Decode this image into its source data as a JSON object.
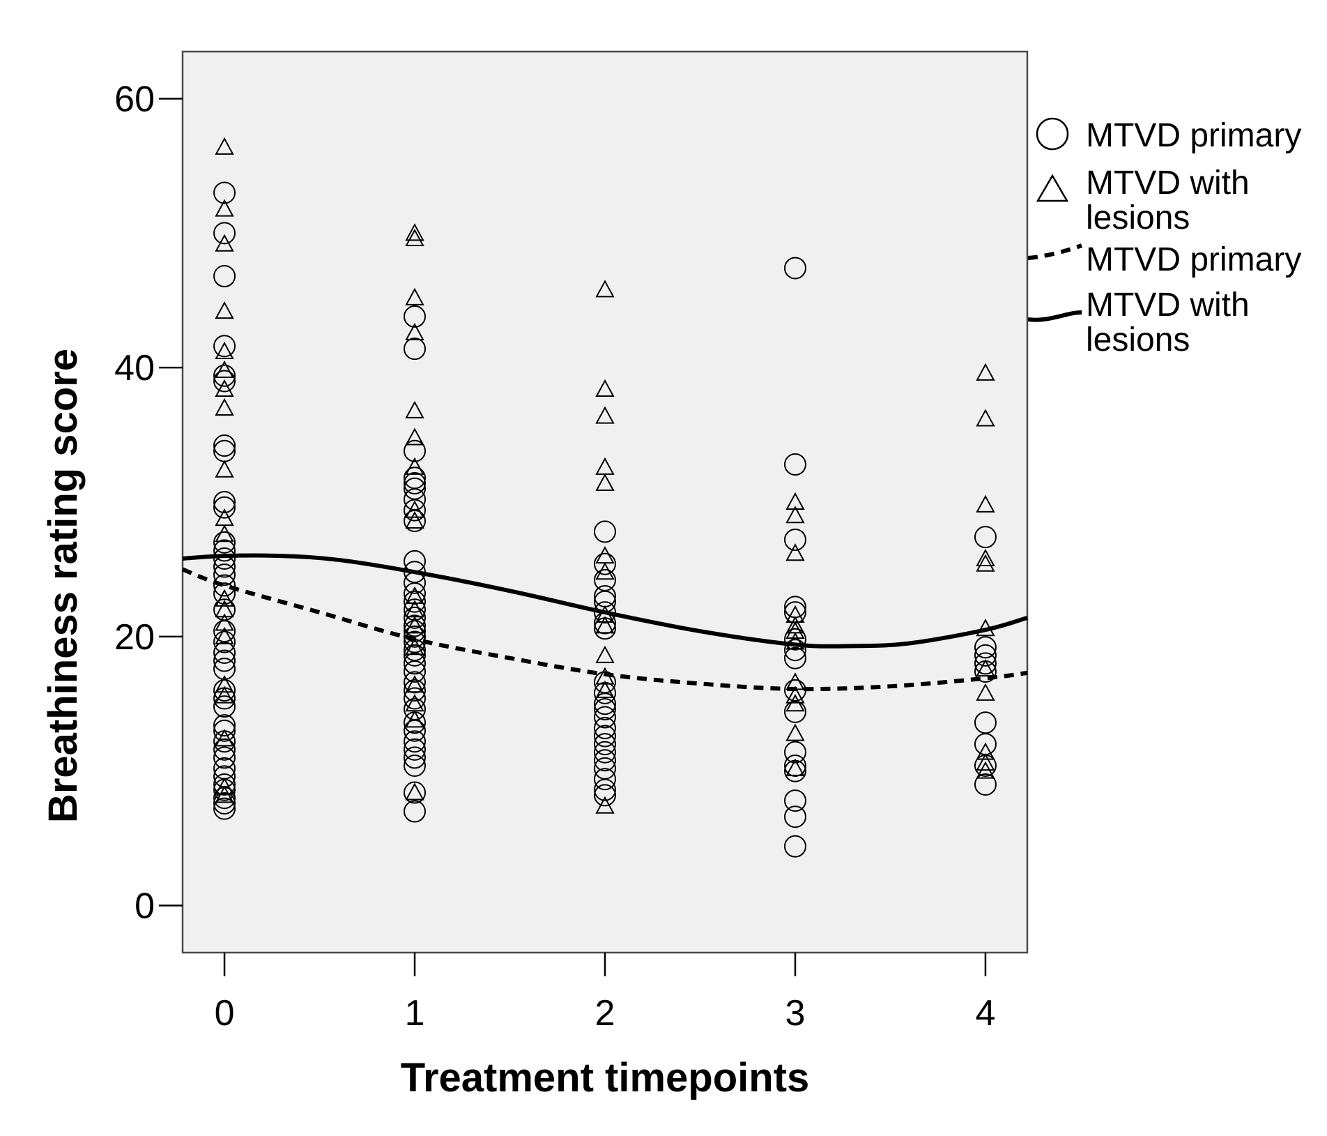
{
  "chart_data": {
    "type": "scatter",
    "title": "",
    "xlabel": "Treatment timepoints",
    "ylabel": "Breathiness rating score",
    "xlim": [
      -0.22,
      4.22
    ],
    "ylim": [
      -3.5,
      63.5
    ],
    "xticks": [
      0,
      1,
      2,
      3,
      4
    ],
    "yticks": [
      0,
      20,
      40,
      60
    ],
    "grid": false,
    "legend_position": "right",
    "series": [
      {
        "name": "MTVD primary",
        "kind": "points",
        "marker": "circle",
        "points": [
          [
            0,
            53.0
          ],
          [
            0,
            50.0
          ],
          [
            0,
            46.8
          ],
          [
            0,
            41.6
          ],
          [
            0,
            39.4
          ],
          [
            0,
            39.0
          ],
          [
            0,
            34.2
          ],
          [
            0,
            33.8
          ],
          [
            0,
            30.0
          ],
          [
            0,
            29.6
          ],
          [
            0,
            27.0
          ],
          [
            0,
            26.4
          ],
          [
            0,
            25.8
          ],
          [
            0,
            25.2
          ],
          [
            0,
            24.6
          ],
          [
            0,
            23.8
          ],
          [
            0,
            23.2
          ],
          [
            0,
            22.0
          ],
          [
            0,
            20.4
          ],
          [
            0,
            19.6
          ],
          [
            0,
            18.8
          ],
          [
            0,
            18.2
          ],
          [
            0,
            17.6
          ],
          [
            0,
            16.0
          ],
          [
            0,
            15.4
          ],
          [
            0,
            14.8
          ],
          [
            0,
            13.4
          ],
          [
            0,
            13.0
          ],
          [
            0,
            12.2
          ],
          [
            0,
            11.6
          ],
          [
            0,
            11.0
          ],
          [
            0,
            10.2
          ],
          [
            0,
            9.6
          ],
          [
            0,
            9.0
          ],
          [
            0,
            8.6
          ],
          [
            0,
            8.0
          ],
          [
            0,
            7.6
          ],
          [
            0,
            7.2
          ],
          [
            1,
            43.8
          ],
          [
            1,
            41.4
          ],
          [
            1,
            33.8
          ],
          [
            1,
            31.8
          ],
          [
            1,
            31.4
          ],
          [
            1,
            31.0
          ],
          [
            1,
            30.2
          ],
          [
            1,
            29.4
          ],
          [
            1,
            28.6
          ],
          [
            1,
            25.6
          ],
          [
            1,
            24.8
          ],
          [
            1,
            24.0
          ],
          [
            1,
            23.2
          ],
          [
            1,
            22.6
          ],
          [
            1,
            22.0
          ],
          [
            1,
            21.4
          ],
          [
            1,
            20.8
          ],
          [
            1,
            20.4
          ],
          [
            1,
            20.0
          ],
          [
            1,
            19.6
          ],
          [
            1,
            19.0
          ],
          [
            1,
            18.6
          ],
          [
            1,
            18.0
          ],
          [
            1,
            17.4
          ],
          [
            1,
            16.6
          ],
          [
            1,
            16.0
          ],
          [
            1,
            15.4
          ],
          [
            1,
            14.6
          ],
          [
            1,
            13.6
          ],
          [
            1,
            13.0
          ],
          [
            1,
            12.2
          ],
          [
            1,
            11.6
          ],
          [
            1,
            11.0
          ],
          [
            1,
            10.4
          ],
          [
            1,
            8.4
          ],
          [
            1,
            7.0
          ],
          [
            2,
            27.8
          ],
          [
            2,
            25.4
          ],
          [
            2,
            24.2
          ],
          [
            2,
            23.0
          ],
          [
            2,
            22.6
          ],
          [
            2,
            21.8
          ],
          [
            2,
            21.0
          ],
          [
            2,
            20.6
          ],
          [
            2,
            16.6
          ],
          [
            2,
            15.8
          ],
          [
            2,
            15.0
          ],
          [
            2,
            14.6
          ],
          [
            2,
            14.0
          ],
          [
            2,
            13.2
          ],
          [
            2,
            12.6
          ],
          [
            2,
            12.0
          ],
          [
            2,
            11.4
          ],
          [
            2,
            10.8
          ],
          [
            2,
            10.2
          ],
          [
            2,
            9.4
          ],
          [
            2,
            8.6
          ],
          [
            2,
            8.2
          ],
          [
            3,
            47.4
          ],
          [
            3,
            32.8
          ],
          [
            3,
            27.2
          ],
          [
            3,
            22.2
          ],
          [
            3,
            21.8
          ],
          [
            3,
            19.8
          ],
          [
            3,
            19.0
          ],
          [
            3,
            18.4
          ],
          [
            3,
            16.0
          ],
          [
            3,
            14.4
          ],
          [
            3,
            11.4
          ],
          [
            3,
            10.4
          ],
          [
            3,
            10.0
          ],
          [
            3,
            7.8
          ],
          [
            3,
            6.6
          ],
          [
            3,
            4.4
          ],
          [
            4,
            27.4
          ],
          [
            4,
            19.2
          ],
          [
            4,
            18.6
          ],
          [
            4,
            18.0
          ],
          [
            4,
            17.4
          ],
          [
            4,
            13.6
          ],
          [
            4,
            12.0
          ],
          [
            4,
            10.4
          ],
          [
            4,
            9.0
          ]
        ]
      },
      {
        "name": "MTVD with lesions",
        "kind": "points",
        "marker": "triangle",
        "points": [
          [
            0,
            56.4
          ],
          [
            0,
            51.8
          ],
          [
            0,
            49.2
          ],
          [
            0,
            44.2
          ],
          [
            0,
            41.2
          ],
          [
            0,
            39.8
          ],
          [
            0,
            38.4
          ],
          [
            0,
            37.0
          ],
          [
            0,
            32.4
          ],
          [
            0,
            28.8
          ],
          [
            0,
            27.6
          ],
          [
            0,
            22.8
          ],
          [
            0,
            22.0
          ],
          [
            0,
            21.0
          ],
          [
            0,
            20.0
          ],
          [
            0,
            16.4
          ],
          [
            0,
            15.6
          ],
          [
            0,
            12.4
          ],
          [
            0,
            8.8
          ],
          [
            0,
            8.2
          ],
          [
            1,
            50.0
          ],
          [
            1,
            49.6
          ],
          [
            1,
            45.2
          ],
          [
            1,
            42.6
          ],
          [
            1,
            36.8
          ],
          [
            1,
            34.8
          ],
          [
            1,
            32.6
          ],
          [
            1,
            29.4
          ],
          [
            1,
            28.6
          ],
          [
            1,
            23.0
          ],
          [
            1,
            22.0
          ],
          [
            1,
            20.8
          ],
          [
            1,
            19.2
          ],
          [
            1,
            16.4
          ],
          [
            1,
            15.0
          ],
          [
            1,
            13.8
          ],
          [
            1,
            8.4
          ],
          [
            2,
            45.8
          ],
          [
            2,
            38.4
          ],
          [
            2,
            36.4
          ],
          [
            2,
            32.6
          ],
          [
            2,
            31.4
          ],
          [
            2,
            26.0
          ],
          [
            2,
            24.8
          ],
          [
            2,
            21.6
          ],
          [
            2,
            20.8
          ],
          [
            2,
            18.6
          ],
          [
            2,
            17.0
          ],
          [
            2,
            16.0
          ],
          [
            2,
            7.4
          ],
          [
            3,
            30.0
          ],
          [
            3,
            29.0
          ],
          [
            3,
            26.2
          ],
          [
            3,
            21.6
          ],
          [
            3,
            20.8
          ],
          [
            3,
            20.4
          ],
          [
            3,
            19.6
          ],
          [
            3,
            16.6
          ],
          [
            3,
            15.6
          ],
          [
            3,
            15.0
          ],
          [
            3,
            12.8
          ],
          [
            3,
            10.2
          ],
          [
            4,
            39.6
          ],
          [
            4,
            36.2
          ],
          [
            4,
            29.8
          ],
          [
            4,
            25.8
          ],
          [
            4,
            25.4
          ],
          [
            4,
            20.6
          ],
          [
            4,
            17.6
          ],
          [
            4,
            15.8
          ],
          [
            4,
            11.4
          ],
          [
            4,
            10.6
          ],
          [
            4,
            10.0
          ]
        ]
      },
      {
        "name": "MTVD primary",
        "kind": "fit",
        "style": "dashed",
        "points": [
          [
            -0.22,
            25.0
          ],
          [
            0,
            23.8
          ],
          [
            0.5,
            21.8
          ],
          [
            1,
            19.8
          ],
          [
            1.5,
            18.4
          ],
          [
            2,
            17.2
          ],
          [
            2.5,
            16.5
          ],
          [
            3,
            16.1
          ],
          [
            3.5,
            16.3
          ],
          [
            4,
            16.9
          ],
          [
            4.22,
            17.3
          ]
        ]
      },
      {
        "name": "MTVD with lesions",
        "kind": "fit",
        "style": "solid",
        "points": [
          [
            -0.22,
            25.8
          ],
          [
            0,
            26.0
          ],
          [
            0.3,
            26.0
          ],
          [
            0.6,
            25.7
          ],
          [
            1,
            24.8
          ],
          [
            1.5,
            23.4
          ],
          [
            2,
            21.8
          ],
          [
            2.5,
            20.4
          ],
          [
            3,
            19.4
          ],
          [
            3.3,
            19.3
          ],
          [
            3.6,
            19.5
          ],
          [
            4,
            20.5
          ],
          [
            4.22,
            21.4
          ]
        ]
      }
    ]
  }
}
